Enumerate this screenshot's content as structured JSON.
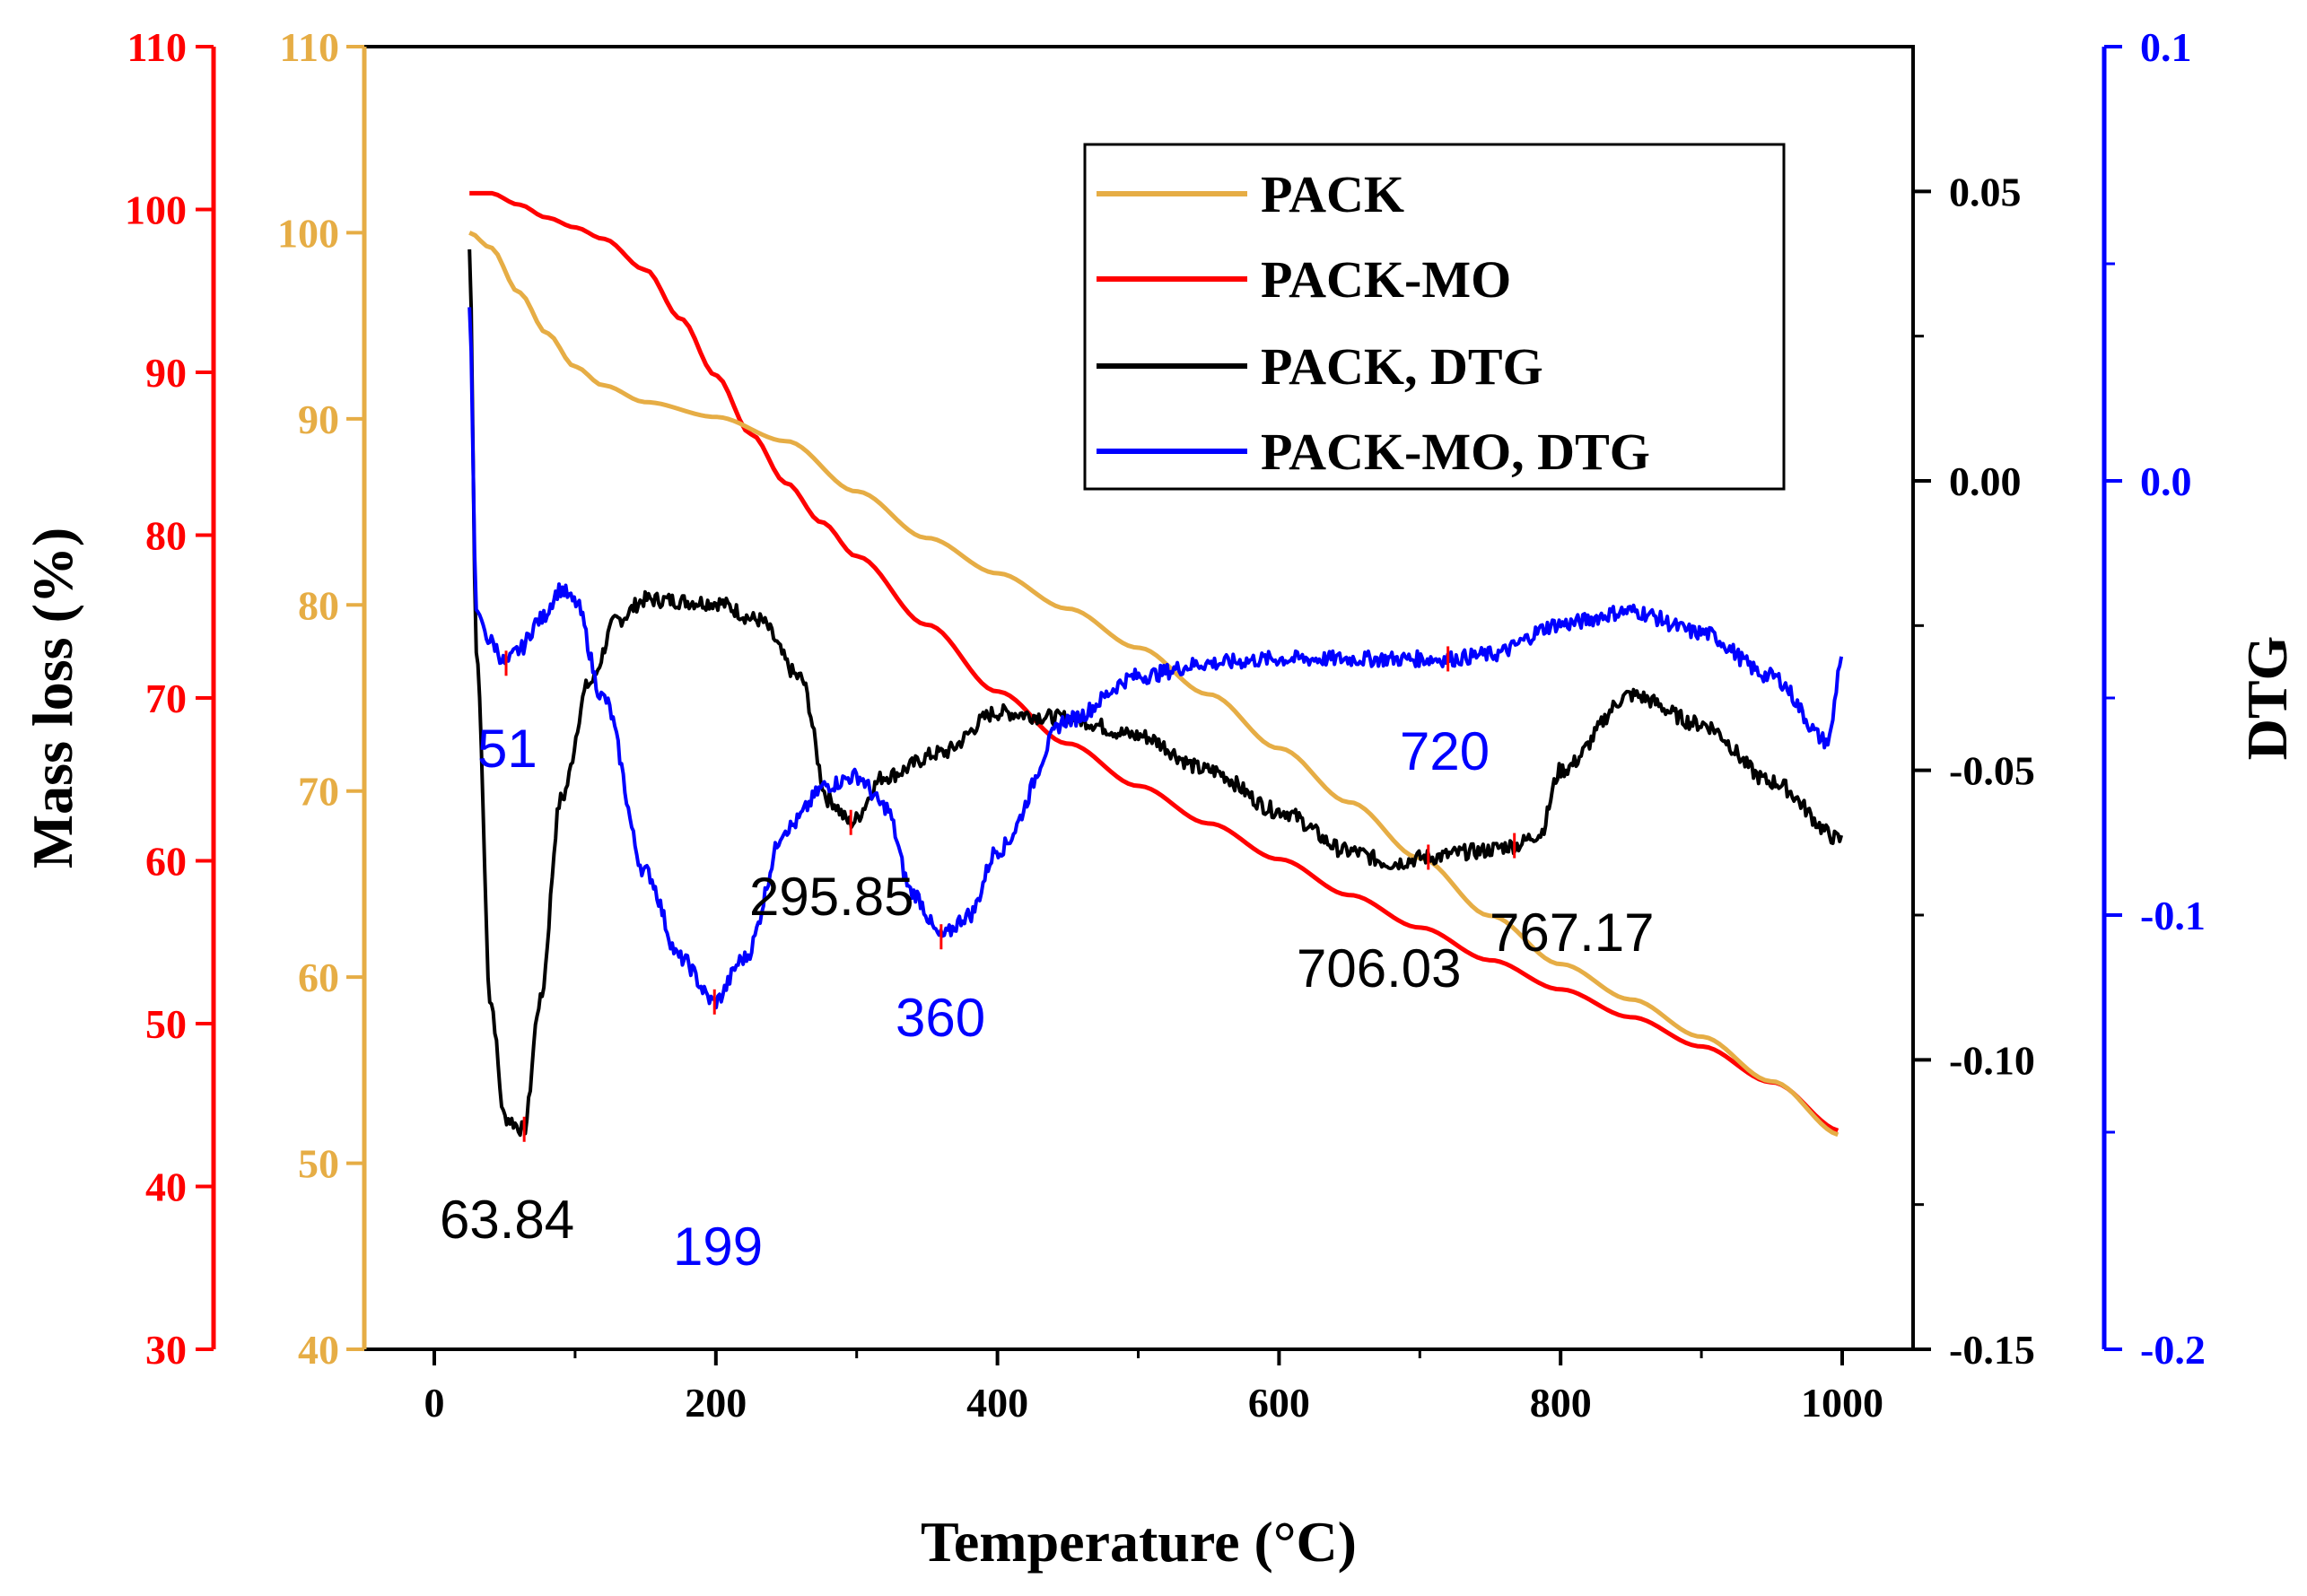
{
  "chart_data": {
    "type": "line",
    "title": "",
    "xlabel": "Temperature (°C)",
    "xlim": [
      -50,
      1050
    ],
    "x_ticks": [
      "0",
      "200",
      "400",
      "600",
      "800",
      "1000"
    ],
    "left_axes": [
      {
        "id": "mass_red",
        "label": "Mass loss (%)",
        "color": "#ff0000",
        "range": [
          30,
          110
        ],
        "ticks": [
          "30",
          "40",
          "50",
          "60",
          "70",
          "80",
          "90",
          "100",
          "110"
        ]
      },
      {
        "id": "mass_gold",
        "label": "",
        "color": "#e6ad45",
        "range": [
          40,
          110
        ],
        "ticks": [
          "40",
          "50",
          "60",
          "70",
          "80",
          "90",
          "100",
          "110"
        ]
      }
    ],
    "right_axes": [
      {
        "id": "dtg_black",
        "label": "DTG",
        "color": "#000000",
        "range": [
          -0.15,
          0.075
        ],
        "ticks": [
          "-0.15",
          "-0.10",
          "-0.05",
          "0.00",
          "0.05"
        ]
      },
      {
        "id": "dtg_blue",
        "label": "",
        "color": "#0000ff",
        "range": [
          -0.2,
          0.1
        ],
        "ticks": [
          "-0.2",
          "-0.1",
          "0.0",
          "0.1"
        ]
      }
    ],
    "legend_position": "top-right",
    "series": [
      {
        "name": "PACK",
        "color": "#e6ad45",
        "axis": "mass_gold",
        "x": [
          25,
          40,
          60,
          80,
          100,
          120,
          150,
          200,
          250,
          300,
          350,
          400,
          450,
          500,
          550,
          600,
          650,
          700,
          750,
          800,
          850,
          900,
          950,
          1000
        ],
        "y": [
          100,
          99.2,
          96.8,
          94.6,
          92.8,
          91.8,
          90.9,
          90.1,
          88.8,
          86.1,
          83.6,
          81.7,
          79.8,
          77.7,
          75.2,
          72.3,
          69.4,
          66.4,
          63.3,
          60.7,
          58.8,
          56.8,
          54.4,
          51.5
        ]
      },
      {
        "name": "PACK-MO",
        "color": "#ff0000",
        "axis": "mass_red",
        "x": [
          25,
          40,
          60,
          80,
          100,
          120,
          150,
          175,
          200,
          225,
          250,
          275,
          300,
          350,
          400,
          450,
          500,
          550,
          600,
          650,
          700,
          750,
          800,
          850,
          900,
          950,
          1000
        ],
        "y": [
          101,
          101,
          100.3,
          99.5,
          98.9,
          98.2,
          96.3,
          93.3,
          89.8,
          86.2,
          83.2,
          80.8,
          78.7,
          74.5,
          70.4,
          67.2,
          64.6,
          62.3,
          60.1,
          57.9,
          55.9,
          53.9,
          52.1,
          50.4,
          48.6,
          46.4,
          43.4
        ]
      },
      {
        "name": "PACK, DTG",
        "color": "#000000",
        "axis": "dtg_black",
        "x": [
          25,
          30,
          40,
          50,
          63.84,
          75,
          90,
          110,
          130,
          150,
          200,
          230,
          260,
          280,
          295.85,
          320,
          360,
          400,
          450,
          500,
          550,
          600,
          650,
          680,
          706.03,
          740,
          767.17,
          785,
          800,
          850,
          900,
          950,
          1000
        ],
        "y": [
          0.04,
          -0.03,
          -0.09,
          -0.11,
          -0.112,
          -0.09,
          -0.055,
          -0.035,
          -0.024,
          -0.0205,
          -0.021,
          -0.024,
          -0.034,
          -0.055,
          -0.059,
          -0.051,
          -0.047,
          -0.04,
          -0.041,
          -0.044,
          -0.05,
          -0.057,
          -0.064,
          -0.066,
          -0.065,
          -0.064,
          -0.063,
          -0.061,
          -0.05,
          -0.037,
          -0.042,
          -0.052,
          -0.062
        ]
      },
      {
        "name": "PACK-MO, DTG",
        "color": "#0000ff",
        "axis": "dtg_blue",
        "x": [
          25,
          30,
          40,
          51,
          60,
          75,
          90,
          100,
          120,
          150,
          175,
          199,
          220,
          250,
          280,
          300,
          320,
          340,
          360,
          380,
          400,
          450,
          500,
          550,
          600,
          650,
          700,
          720,
          750,
          800,
          850,
          900,
          950,
          990,
          1000
        ],
        "y": [
          0.04,
          -0.03,
          -0.037,
          -0.042,
          -0.039,
          -0.032,
          -0.025,
          -0.028,
          -0.05,
          -0.09,
          -0.11,
          -0.12,
          -0.11,
          -0.08,
          -0.07,
          -0.068,
          -0.075,
          -0.095,
          -0.105,
          -0.1,
          -0.085,
          -0.055,
          -0.045,
          -0.042,
          -0.041,
          -0.041,
          -0.041,
          -0.041,
          -0.04,
          -0.033,
          -0.03,
          -0.035,
          -0.045,
          -0.06,
          -0.04
        ]
      }
    ],
    "annotations": [
      {
        "text": "63.84",
        "color": "#000000"
      },
      {
        "text": "295.85",
        "color": "#000000"
      },
      {
        "text": "706.03",
        "color": "#000000"
      },
      {
        "text": "767.17",
        "color": "#000000"
      },
      {
        "text": "51",
        "color": "#0000ff"
      },
      {
        "text": "199",
        "color": "#0000ff"
      },
      {
        "text": "360",
        "color": "#0000ff"
      },
      {
        "text": "720",
        "color": "#0000ff"
      }
    ]
  }
}
